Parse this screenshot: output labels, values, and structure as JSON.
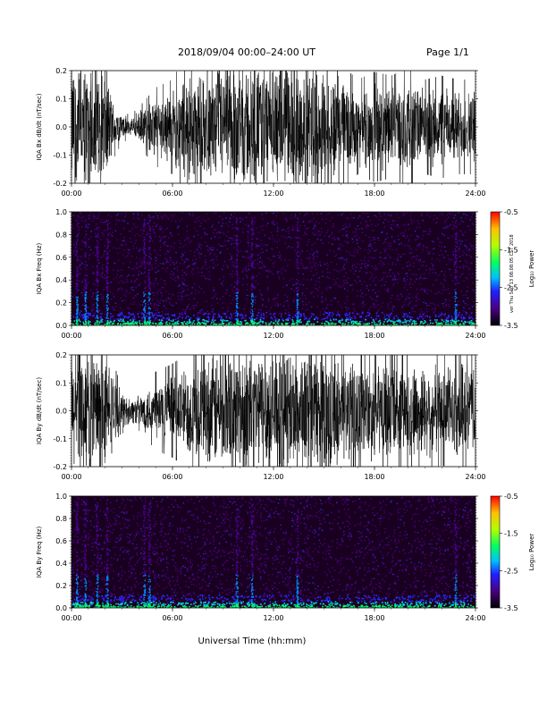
{
  "header": {
    "title": "2018/09/04  00:00–24:00 UT",
    "page": "Page 1/1"
  },
  "footer": {
    "xlabel": "Universal Time (hh:mm)",
    "stamp": "ver Thu Sep 13 08:08:05 CST 2018"
  },
  "colors": {
    "trace": "#000000",
    "spectrogram_background": "#1a0020"
  },
  "chart_data": [
    {
      "type": "line",
      "ylabel": "IQA Bx dB/dt (nT/sec)",
      "x_ticks": [
        "00:00",
        "06:00",
        "12:00",
        "18:00",
        "24:00"
      ],
      "xlim": [
        0,
        24
      ],
      "ylim": [
        -0.2,
        0.2
      ],
      "y_ticks": [
        "0.2",
        "0.1",
        "0.0",
        "-0.1",
        "-0.2"
      ],
      "envelope": {
        "hours": [
          0,
          1,
          2,
          2.5,
          3,
          3.5,
          4,
          5,
          6,
          7,
          8,
          9,
          10,
          11,
          12,
          13,
          14,
          15,
          16,
          17,
          18,
          19,
          20,
          21,
          22,
          23,
          24
        ],
        "amplitude": [
          0.2,
          0.2,
          0.2,
          0.08,
          0.04,
          0.03,
          0.05,
          0.1,
          0.12,
          0.2,
          0.15,
          0.2,
          0.2,
          0.2,
          0.2,
          0.2,
          0.2,
          0.2,
          0.16,
          0.12,
          0.14,
          0.13,
          0.15,
          0.12,
          0.13,
          0.12,
          0.12
        ]
      }
    },
    {
      "type": "heatmap",
      "ylabel": "IQA Bx Freq (Hz)",
      "x_ticks": [
        "00:00",
        "06:00",
        "12:00",
        "18:00",
        "24:00"
      ],
      "xlim": [
        0,
        24
      ],
      "ylim": [
        0,
        1.0
      ],
      "y_ticks": [
        "1.0",
        "0.8",
        "0.6",
        "0.4",
        "0.2",
        "0.0"
      ],
      "colorbar": {
        "label": "Log₁₀ Power",
        "ticks": [
          "-0.5",
          "-1.5",
          "-2.5",
          "-3.5"
        ],
        "range": [
          -3.5,
          -0.5
        ]
      },
      "bright_columns_hours": [
        0.3,
        0.8,
        1.5,
        2.1,
        4.3,
        4.6,
        9.8,
        10.7,
        13.4,
        22.8
      ]
    },
    {
      "type": "line",
      "ylabel": "IQA By dB/dt (nT/sec)",
      "x_ticks": [
        "00:00",
        "06:00",
        "12:00",
        "18:00",
        "24:00"
      ],
      "xlim": [
        0,
        24
      ],
      "ylim": [
        -0.2,
        0.2
      ],
      "y_ticks": [
        "0.2",
        "0.1",
        "0.0",
        "-0.1",
        "-0.2"
      ],
      "envelope": {
        "hours": [
          0,
          1,
          2,
          2.5,
          3,
          3.5,
          4,
          5,
          6,
          7,
          8,
          9,
          10,
          11,
          12,
          13,
          14,
          15,
          16,
          17,
          18,
          19,
          20,
          21,
          22,
          23,
          24
        ],
        "amplitude": [
          0.2,
          0.2,
          0.2,
          0.12,
          0.06,
          0.04,
          0.05,
          0.1,
          0.12,
          0.15,
          0.18,
          0.2,
          0.2,
          0.2,
          0.2,
          0.2,
          0.2,
          0.2,
          0.17,
          0.16,
          0.16,
          0.15,
          0.16,
          0.15,
          0.14,
          0.15,
          0.15
        ]
      }
    },
    {
      "type": "heatmap",
      "ylabel": "IQA By Freq (Hz)",
      "x_ticks": [
        "00:00",
        "06:00",
        "12:00",
        "18:00",
        "24:00"
      ],
      "xlim": [
        0,
        24
      ],
      "ylim": [
        0,
        1.0
      ],
      "y_ticks": [
        "1.0",
        "0.8",
        "0.6",
        "0.4",
        "0.2",
        "0.0"
      ],
      "colorbar": {
        "label": "Log₁₀ Power",
        "ticks": [
          "-0.5",
          "-1.5",
          "-2.5",
          "-3.5"
        ],
        "range": [
          -3.5,
          -0.5
        ]
      },
      "bright_columns_hours": [
        0.3,
        0.8,
        1.5,
        2.1,
        4.3,
        4.6,
        9.8,
        10.7,
        13.4,
        22.8
      ]
    }
  ]
}
